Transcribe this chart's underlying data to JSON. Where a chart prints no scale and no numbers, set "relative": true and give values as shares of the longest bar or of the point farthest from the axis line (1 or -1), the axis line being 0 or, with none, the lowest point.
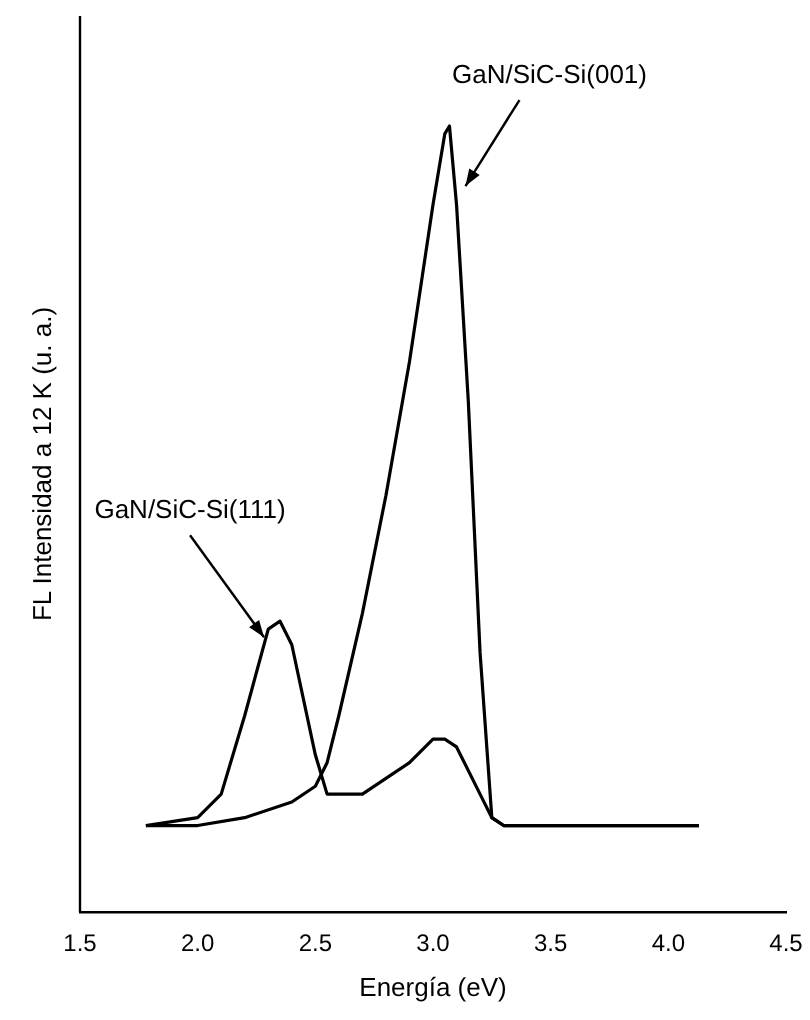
{
  "chart_data": {
    "type": "line",
    "xlabel": "Energía (eV)",
    "ylabel": "FL Intensidad a 12 K (u. a.)",
    "relative": true,
    "legend": false,
    "grid": false,
    "marker": "none",
    "line_style": "solid",
    "xlim": [
      1.5,
      4.5
    ],
    "xticks": [
      {
        "value": 1.5,
        "label": "1.5"
      },
      {
        "value": 2,
        "label": "2.0"
      },
      {
        "value": 2.5,
        "label": "2.5"
      },
      {
        "value": 3,
        "label": "3.0"
      },
      {
        "value": 3.5,
        "label": "3.5"
      },
      {
        "value": 4,
        "label": "4.0"
      },
      {
        "value": 4.5,
        "label": "4.5"
      }
    ],
    "series": [
      {
        "name": "GaN/SiC-Si(001)",
        "color": "#000000",
        "x": [
          1.78,
          2.0,
          2.2,
          2.4,
          2.5,
          2.55,
          2.6,
          2.7,
          2.8,
          2.9,
          2.95,
          3.0,
          3.05,
          3.07,
          3.1,
          3.15,
          3.2,
          3.25,
          3.3,
          4.13
        ],
        "values": [
          0.11,
          0.11,
          0.12,
          0.14,
          0.16,
          0.19,
          0.25,
          0.38,
          0.53,
          0.7,
          0.8,
          0.9,
          0.99,
          1,
          0.9,
          0.65,
          0.33,
          0.12,
          0.11,
          0.11
        ]
      },
      {
        "name": "GaN/SiC-Si(111)",
        "color": "#000000",
        "x": [
          1.78,
          2.0,
          2.1,
          2.2,
          2.3,
          2.35,
          2.4,
          2.5,
          2.55,
          2.6,
          2.7,
          2.8,
          2.9,
          3.0,
          3.05,
          3.1,
          3.2,
          3.25,
          3.3,
          4.13
        ],
        "values": [
          0.11,
          0.12,
          0.15,
          0.25,
          0.36,
          0.37,
          0.34,
          0.2,
          0.15,
          0.15,
          0.15,
          0.17,
          0.19,
          0.22,
          0.22,
          0.21,
          0.15,
          0.12,
          0.11,
          0.11
        ]
      }
    ]
  }
}
